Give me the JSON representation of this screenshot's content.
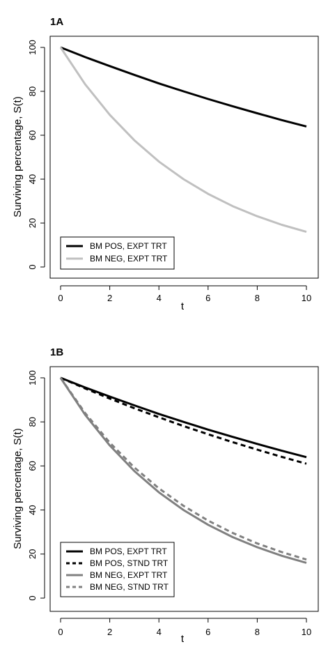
{
  "chart_data": [
    {
      "panel_label": "1A",
      "type": "line",
      "xlabel": "t",
      "ylabel": "Surviving percentage, S(t)",
      "xlim": [
        0,
        10
      ],
      "ylim": [
        0,
        100
      ],
      "x_ticks": [
        "0",
        "2",
        "4",
        "6",
        "8",
        "10"
      ],
      "y_ticks": [
        "0",
        "20",
        "40",
        "60",
        "80",
        "100"
      ],
      "grid": false,
      "legend_position": "bottom-left",
      "x": [
        0,
        1,
        2,
        3,
        4,
        5,
        6,
        7,
        8,
        9,
        10
      ],
      "series": [
        {
          "name": "BM POS, EXPT TRT",
          "color": "#000000",
          "dash": "solid",
          "values": [
            100,
            95.6,
            91.5,
            87.5,
            83.6,
            80.0,
            76.5,
            73.2,
            70.0,
            66.9,
            64.0
          ]
        },
        {
          "name": "BM NEG, EXPT TRT",
          "color": "#c0c0c0",
          "dash": "solid",
          "values": [
            100,
            83.2,
            69.3,
            57.7,
            48.0,
            40.0,
            33.3,
            27.7,
            23.1,
            19.2,
            16.0
          ]
        }
      ]
    },
    {
      "panel_label": "1B",
      "type": "line",
      "xlabel": "t",
      "ylabel": "Surviving percentage, S(t)",
      "xlim": [
        0,
        10
      ],
      "ylim": [
        0,
        100
      ],
      "x_ticks": [
        "0",
        "2",
        "4",
        "6",
        "8",
        "10"
      ],
      "y_ticks": [
        "0",
        "20",
        "40",
        "60",
        "80",
        "100"
      ],
      "grid": false,
      "legend_position": "bottom-left",
      "x": [
        0,
        1,
        2,
        3,
        4,
        5,
        6,
        7,
        8,
        9,
        10
      ],
      "series": [
        {
          "name": "BM POS, EXPT TRT",
          "color": "#000000",
          "dash": "solid",
          "values": [
            100,
            95.6,
            91.5,
            87.5,
            83.6,
            80.0,
            76.5,
            73.2,
            70.0,
            66.9,
            64.0
          ]
        },
        {
          "name": "BM POS, STND TRT",
          "color": "#000000",
          "dash": "dashed",
          "values": [
            100,
            95.2,
            90.6,
            86.2,
            82.1,
            78.1,
            74.4,
            70.8,
            67.4,
            64.1,
            61.0
          ]
        },
        {
          "name": "BM NEG, EXPT TRT",
          "color": "#808080",
          "dash": "solid",
          "values": [
            100,
            83.2,
            69.3,
            57.7,
            48.0,
            40.0,
            33.3,
            27.7,
            23.1,
            19.2,
            16.0
          ]
        },
        {
          "name": "BM NEG, STND TRT",
          "color": "#808080",
          "dash": "dashed",
          "values": [
            100,
            84.0,
            70.6,
            59.3,
            49.8,
            41.9,
            35.2,
            29.6,
            24.8,
            20.9,
            17.5
          ]
        }
      ]
    }
  ]
}
